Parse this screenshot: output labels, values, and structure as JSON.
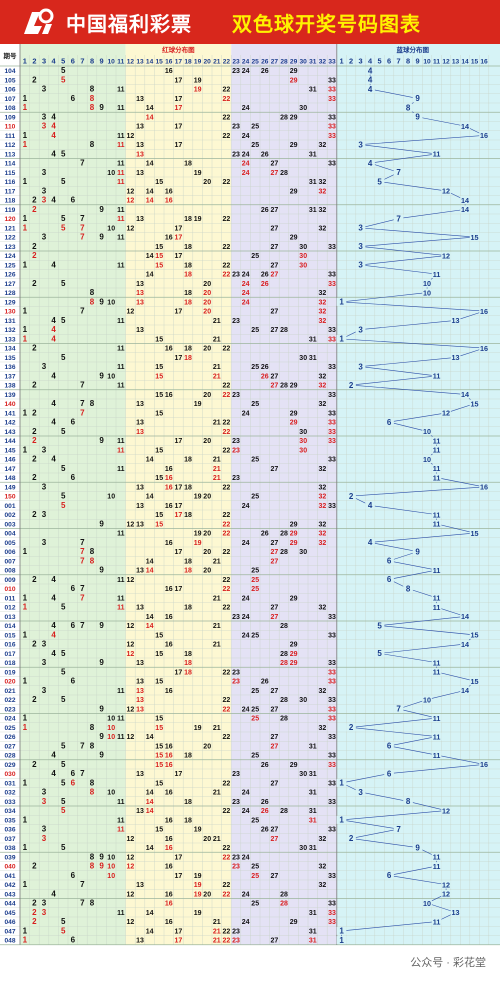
{
  "header": {
    "brand": "中国福利彩票",
    "title": "双色球开奖号码图表",
    "logo_icon": "welfare-lottery-logo-icon"
  },
  "watermark": "公众号 · 彩花堂",
  "colors": {
    "header_bg": "#d8271c",
    "title_color": "#fff200",
    "red_zone_1": "#dff2d8",
    "red_zone_2": "#fdf8d2",
    "red_zone_3": "#e4e2f5",
    "blue_zone": "#d6f3f6",
    "number_black": "#111111",
    "number_red": "#d81e1e",
    "number_blue": "#1a3c8c",
    "repeat_mark": "#c46a00",
    "grid_line": "#c7d3c7"
  },
  "chart_data": {
    "type": "table",
    "title": "双色球开奖号码图表",
    "column_header_issue": "期号",
    "red_section_label": "红球分布图",
    "blue_section_label": "蓝球分布图",
    "red_numbers": [
      1,
      2,
      3,
      4,
      5,
      6,
      7,
      8,
      9,
      10,
      11,
      12,
      13,
      14,
      15,
      16,
      17,
      18,
      19,
      20,
      21,
      22,
      23,
      24,
      25,
      26,
      27,
      28,
      29,
      30,
      31,
      32,
      33
    ],
    "blue_numbers": [
      1,
      2,
      3,
      4,
      5,
      6,
      7,
      8,
      9,
      10,
      11,
      12,
      13,
      14,
      15,
      16
    ],
    "issues": [
      "104",
      "105",
      "106",
      "107",
      "108",
      "109",
      "110",
      "111",
      "112",
      "113",
      "114",
      "115",
      "116",
      "117",
      "118",
      "119",
      "120",
      "121",
      "122",
      "123",
      "124",
      "125",
      "126",
      "127",
      "128",
      "129",
      "130",
      "131",
      "132",
      "133",
      "134",
      "135",
      "136",
      "137",
      "138",
      "139",
      "140",
      "141",
      "142",
      "143",
      "144",
      "145",
      "146",
      "147",
      "148",
      "149",
      "150",
      "001",
      "002",
      "003",
      "004",
      "005",
      "006",
      "007",
      "008",
      "009",
      "010",
      "011",
      "012",
      "013",
      "014",
      "015",
      "016",
      "017",
      "018",
      "019",
      "020",
      "021",
      "022",
      "023",
      "024",
      "025",
      "026",
      "027",
      "028",
      "029",
      "030",
      "031",
      "032",
      "033",
      "034",
      "035",
      "036",
      "037",
      "038",
      "039",
      "040",
      "041",
      "042",
      "043",
      "044",
      "045",
      "046",
      "047",
      "048"
    ],
    "draws": [
      {
        "issue": "104",
        "red": [
          5,
          16,
          23,
          24,
          26,
          29
        ],
        "blue": 4
      },
      {
        "issue": "105",
        "red": [
          2,
          5,
          17,
          19,
          29,
          33
        ],
        "blue": 4
      },
      {
        "issue": "106",
        "red": [
          3,
          8,
          11,
          19,
          22,
          31,
          33
        ],
        "blue": 4
      },
      {
        "issue": "107",
        "red": [
          1,
          6,
          8,
          13,
          17,
          22,
          33
        ],
        "blue": 9
      },
      {
        "issue": "108",
        "red": [
          1,
          8,
          9,
          11,
          14,
          17,
          24,
          30
        ],
        "blue": 8
      },
      {
        "issue": "109",
        "red": [
          3,
          4,
          14,
          22,
          28,
          29,
          33
        ],
        "blue": 9
      },
      {
        "issue": "110",
        "red": [
          3,
          4,
          13,
          17,
          23,
          25,
          33
        ],
        "blue": 14
      },
      {
        "issue": "111",
        "red": [
          1,
          4,
          11,
          12,
          22,
          24,
          33
        ],
        "blue": 16
      },
      {
        "issue": "112",
        "red": [
          1,
          8,
          11,
          13,
          17,
          25,
          29,
          32
        ],
        "blue": 3
      },
      {
        "issue": "113",
        "red": [
          4,
          5,
          13,
          23,
          24,
          26,
          31
        ],
        "blue": 11
      },
      {
        "issue": "114",
        "red": [
          7,
          11,
          14,
          18,
          24,
          27,
          33
        ],
        "blue": 4
      },
      {
        "issue": "115",
        "red": [
          3,
          10,
          11,
          13,
          19,
          24,
          27,
          28
        ],
        "blue": 7
      },
      {
        "issue": "116",
        "red": [
          1,
          5,
          11,
          15,
          20,
          22,
          31,
          32
        ],
        "blue": 5
      },
      {
        "issue": "117",
        "red": [
          3,
          12,
          14,
          16,
          29,
          32
        ],
        "blue": 12
      },
      {
        "issue": "118",
        "red": [
          2,
          3,
          4,
          6,
          12,
          14,
          16
        ],
        "blue": 14
      },
      {
        "issue": "119",
        "red": [
          2,
          9,
          11,
          26,
          27,
          31,
          32
        ],
        "blue": 14
      },
      {
        "issue": "120",
        "red": [
          1,
          5,
          7,
          11,
          13,
          18,
          19,
          22
        ],
        "blue": 7
      },
      {
        "issue": "121",
        "red": [
          1,
          5,
          7,
          10,
          12,
          17,
          27,
          32
        ],
        "blue": 3
      },
      {
        "issue": "122",
        "red": [
          3,
          7,
          9,
          11,
          16,
          17,
          29
        ],
        "blue": 15
      },
      {
        "issue": "123",
        "red": [
          2,
          15,
          18,
          22,
          27,
          30,
          33
        ],
        "blue": 3
      },
      {
        "issue": "124",
        "red": [
          2,
          14,
          15,
          17,
          25,
          30
        ],
        "blue": 12
      },
      {
        "issue": "125",
        "red": [
          1,
          4,
          11,
          15,
          18,
          22,
          27,
          30
        ],
        "blue": 3
      },
      {
        "issue": "126",
        "red": [
          14,
          18,
          22,
          23,
          24,
          26,
          27,
          33
        ],
        "blue": 11
      },
      {
        "issue": "127",
        "red": [
          2,
          5,
          13,
          20,
          24,
          26,
          33
        ],
        "blue": 10
      },
      {
        "issue": "128",
        "red": [
          8,
          13,
          18,
          20,
          24,
          32
        ],
        "blue": 10
      },
      {
        "issue": "129",
        "red": [
          8,
          9,
          10,
          13,
          18,
          20,
          24,
          32
        ],
        "blue": 1
      },
      {
        "issue": "130",
        "red": [
          1,
          7,
          12,
          17,
          20,
          27,
          32
        ],
        "blue": 16
      },
      {
        "issue": "131",
        "red": [
          4,
          5,
          11,
          21,
          23,
          32
        ],
        "blue": 13
      },
      {
        "issue": "132",
        "red": [
          1,
          4,
          13,
          25,
          27,
          28,
          33
        ],
        "blue": 3
      },
      {
        "issue": "133",
        "red": [
          1,
          4,
          15,
          21,
          31,
          33
        ],
        "blue": 1
      },
      {
        "issue": "134",
        "red": [
          2,
          11,
          16,
          18,
          20,
          22
        ],
        "blue": 16
      },
      {
        "issue": "135",
        "red": [
          5,
          17,
          18,
          30,
          31
        ],
        "blue": 13
      },
      {
        "issue": "136",
        "red": [
          3,
          11,
          15,
          21,
          25,
          26,
          33
        ],
        "blue": 3
      },
      {
        "issue": "137",
        "red": [
          4,
          9,
          10,
          15,
          21,
          26,
          27,
          32
        ],
        "blue": 11
      },
      {
        "issue": "138",
        "red": [
          2,
          7,
          11,
          22,
          27,
          28,
          29,
          32
        ],
        "blue": 2
      },
      {
        "issue": "139",
        "red": [
          15,
          16,
          20,
          22,
          23,
          33
        ],
        "blue": 14
      },
      {
        "issue": "140",
        "red": [
          4,
          7,
          8,
          13,
          19,
          25,
          32
        ],
        "blue": 15
      },
      {
        "issue": "141",
        "red": [
          1,
          2,
          7,
          15,
          24,
          29,
          33
        ],
        "blue": 12
      },
      {
        "issue": "142",
        "red": [
          4,
          6,
          13,
          21,
          22,
          29,
          33
        ],
        "blue": 6
      },
      {
        "issue": "143",
        "red": [
          2,
          5,
          13,
          22,
          30,
          33
        ],
        "blue": 10
      },
      {
        "issue": "144",
        "red": [
          2,
          9,
          11,
          17,
          20,
          23,
          30,
          33
        ],
        "blue": 11
      },
      {
        "issue": "145",
        "red": [
          1,
          3,
          11,
          15,
          22,
          23,
          30
        ],
        "blue": 11
      },
      {
        "issue": "146",
        "red": [
          2,
          4,
          14,
          18,
          21,
          25,
          33
        ],
        "blue": 10
      },
      {
        "issue": "147",
        "red": [
          5,
          11,
          16,
          21,
          27,
          32
        ],
        "blue": 11
      },
      {
        "issue": "148",
        "red": [
          2,
          6,
          15,
          16,
          21,
          23
        ],
        "blue": 11
      },
      {
        "issue": "149",
        "red": [
          3,
          13,
          16,
          17,
          18,
          22,
          32
        ],
        "blue": 16
      },
      {
        "issue": "150",
        "red": [
          5,
          10,
          14,
          19,
          20,
          25,
          32
        ],
        "blue": 2
      },
      {
        "issue": "001",
        "red": [
          5,
          13,
          16,
          17,
          24,
          32,
          33
        ],
        "blue": 4
      },
      {
        "issue": "002",
        "red": [
          2,
          3,
          15,
          17,
          18,
          22
        ],
        "blue": 11
      },
      {
        "issue": "003",
        "red": [
          9,
          12,
          13,
          15,
          22,
          29,
          32
        ],
        "blue": 11
      },
      {
        "issue": "004",
        "red": [
          11,
          19,
          20,
          22,
          26,
          28,
          29,
          32
        ],
        "blue": 15
      },
      {
        "issue": "005",
        "red": [
          3,
          7,
          16,
          19,
          24,
          27,
          29,
          32
        ],
        "blue": 4
      },
      {
        "issue": "006",
        "red": [
          1,
          7,
          8,
          17,
          20,
          22,
          27,
          28,
          30
        ],
        "blue": 9
      },
      {
        "issue": "007",
        "red": [
          7,
          8,
          14,
          18,
          21,
          27
        ],
        "blue": 6
      },
      {
        "issue": "008",
        "red": [
          9,
          13,
          14,
          18,
          20,
          25
        ],
        "blue": 11
      },
      {
        "issue": "009",
        "red": [
          2,
          4,
          11,
          12,
          22,
          25
        ],
        "blue": 6
      },
      {
        "issue": "010",
        "red": [
          6,
          7,
          16,
          17,
          22,
          25
        ],
        "blue": 8
      },
      {
        "issue": "011",
        "red": [
          1,
          4,
          7,
          11,
          21,
          24,
          29
        ],
        "blue": 11
      },
      {
        "issue": "012",
        "red": [
          1,
          5,
          11,
          13,
          18,
          22,
          27,
          32
        ],
        "blue": 11
      },
      {
        "issue": "013",
        "red": [
          14,
          16,
          23,
          24,
          27,
          33
        ],
        "blue": 14
      },
      {
        "issue": "014",
        "red": [
          4,
          6,
          7,
          9,
          12,
          14,
          21,
          28
        ],
        "blue": 5
      },
      {
        "issue": "015",
        "red": [
          1,
          4,
          15,
          24,
          25,
          33
        ],
        "blue": 15
      },
      {
        "issue": "016",
        "red": [
          2,
          3,
          12,
          16,
          21,
          29
        ],
        "blue": 14
      },
      {
        "issue": "017",
        "red": [
          4,
          5,
          12,
          15,
          18,
          28,
          29
        ],
        "blue": 5
      },
      {
        "issue": "018",
        "red": [
          3,
          9,
          13,
          18,
          28,
          29,
          33
        ],
        "blue": 11
      },
      {
        "issue": "019",
        "red": [
          5,
          17,
          18,
          22,
          23,
          33
        ],
        "blue": 11
      },
      {
        "issue": "020",
        "red": [
          1,
          6,
          13,
          15,
          23,
          26,
          33
        ],
        "blue": 15
      },
      {
        "issue": "021",
        "red": [
          3,
          11,
          13,
          16,
          25,
          27,
          32
        ],
        "blue": 14
      },
      {
        "issue": "022",
        "red": [
          2,
          5,
          13,
          22,
          28,
          30,
          33
        ],
        "blue": 10
      },
      {
        "issue": "023",
        "red": [
          9,
          12,
          13,
          22,
          24,
          25,
          27,
          33
        ],
        "blue": 7
      },
      {
        "issue": "024",
        "red": [
          1,
          10,
          11,
          15,
          25,
          28,
          33
        ],
        "blue": 11
      },
      {
        "issue": "025",
        "red": [
          1,
          8,
          10,
          15,
          19,
          21,
          32
        ],
        "blue": 2
      },
      {
        "issue": "026",
        "red": [
          9,
          10,
          11,
          12,
          14,
          22,
          27,
          33
        ],
        "blue": 11
      },
      {
        "issue": "027",
        "red": [
          5,
          7,
          8,
          15,
          16,
          20,
          27,
          31
        ],
        "blue": 6
      },
      {
        "issue": "028",
        "red": [
          4,
          9,
          15,
          16,
          18,
          25,
          33
        ],
        "blue": 11
      },
      {
        "issue": "029",
        "red": [
          2,
          5,
          15,
          16,
          26,
          29,
          33
        ],
        "blue": 16
      },
      {
        "issue": "030",
        "red": [
          4,
          6,
          7,
          13,
          17,
          23,
          30,
          31
        ],
        "blue": 6
      },
      {
        "issue": "031",
        "red": [
          1,
          5,
          6,
          8,
          15,
          22,
          27,
          33
        ],
        "blue": 1
      },
      {
        "issue": "032",
        "red": [
          3,
          8,
          10,
          14,
          16,
          21,
          24,
          31
        ],
        "blue": 3
      },
      {
        "issue": "033",
        "red": [
          3,
          5,
          11,
          14,
          18,
          23,
          26,
          33
        ],
        "blue": 8
      },
      {
        "issue": "034",
        "red": [
          5,
          13,
          14,
          22,
          24,
          26,
          28,
          31
        ],
        "blue": 12
      },
      {
        "issue": "035",
        "red": [
          1,
          11,
          16,
          18,
          25,
          31
        ],
        "blue": 1
      },
      {
        "issue": "036",
        "red": [
          3,
          11,
          15,
          19,
          26,
          27,
          33
        ],
        "blue": 7
      },
      {
        "issue": "037",
        "red": [
          3,
          12,
          16,
          20,
          21,
          27,
          32
        ],
        "blue": 2
      },
      {
        "issue": "038",
        "red": [
          1,
          5,
          14,
          16,
          22,
          30,
          31
        ],
        "blue": 9
      },
      {
        "issue": "039",
        "red": [
          8,
          9,
          10,
          12,
          17,
          22,
          23,
          24
        ],
        "blue": 11
      },
      {
        "issue": "040",
        "red": [
          2,
          8,
          9,
          10,
          12,
          16,
          23,
          25,
          32
        ],
        "blue": 11
      },
      {
        "issue": "041",
        "red": [
          6,
          10,
          17,
          19,
          25,
          27,
          33
        ],
        "blue": 6
      },
      {
        "issue": "042",
        "red": [
          1,
          7,
          13,
          19,
          22,
          32
        ],
        "blue": 12
      },
      {
        "issue": "043",
        "red": [
          4,
          12,
          16,
          19,
          20,
          22,
          24,
          28
        ],
        "blue": 12
      },
      {
        "issue": "044",
        "red": [
          2,
          3,
          7,
          8,
          16,
          25,
          28,
          33
        ],
        "blue": 10
      },
      {
        "issue": "045",
        "red": [
          2,
          3,
          11,
          14,
          19,
          31,
          33
        ],
        "blue": 13
      },
      {
        "issue": "046",
        "red": [
          2,
          5,
          12,
          16,
          21,
          24,
          29,
          33
        ],
        "blue": 11
      },
      {
        "issue": "047",
        "red": [
          1,
          5,
          14,
          17,
          21,
          22,
          23,
          31
        ],
        "blue": 1
      },
      {
        "issue": "048",
        "red": [
          1,
          6,
          13,
          17,
          21,
          22,
          23,
          27,
          31
        ],
        "blue": 1
      }
    ]
  }
}
